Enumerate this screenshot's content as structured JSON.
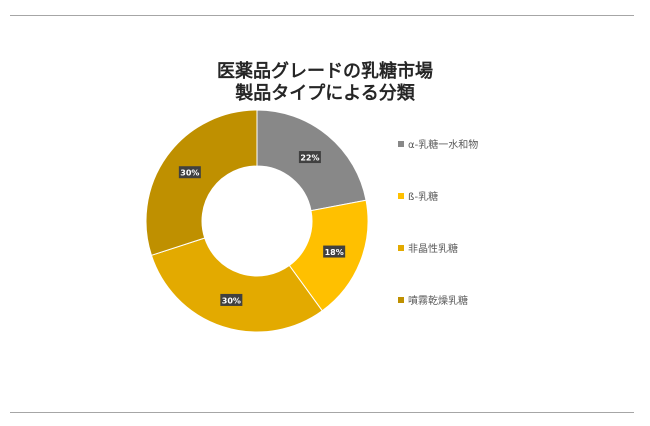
{
  "title": {
    "line1": "医薬品グレードの乳糖市場",
    "line2": "製品タイプによる分類"
  },
  "chart_data": {
    "type": "pie",
    "donut": true,
    "categories": [
      "α-乳糖一水和物",
      "ß-乳糖",
      "非晶性乳糖",
      "噴霧乾燥乳糖"
    ],
    "values": [
      22,
      18,
      30,
      30
    ],
    "data_labels": [
      "22%",
      "18%",
      "30%",
      "30%"
    ],
    "colors": [
      "#888888",
      "#ffc000",
      "#e3aa00",
      "#bf9000"
    ],
    "legend_position": "right"
  }
}
